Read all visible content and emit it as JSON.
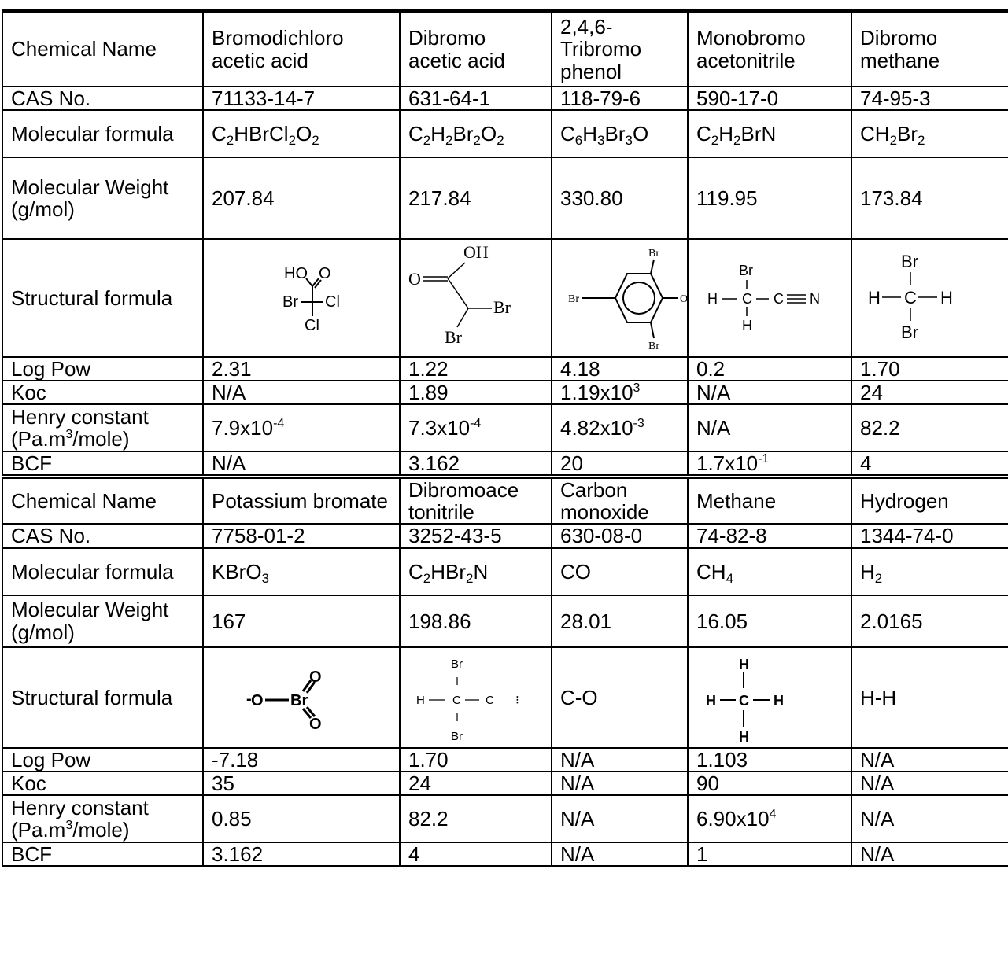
{
  "labels": {
    "chemical_name": "Chemical Name",
    "cas_no": "CAS No.",
    "molecular_formula": "Molecular formula",
    "molecular_weight": "Molecular Weight (g/mol)",
    "structural_formula": "Structural formula",
    "log_pow": "Log Pow",
    "koc": "Koc",
    "henry_a": "Henry constant",
    "henry_b": "(Pa.m",
    "henry_sup": "3",
    "henry_c": "/mole)",
    "bcf": "BCF"
  },
  "table_a": {
    "names": [
      "Bromodichloro acetic acid",
      "Dibromo acetic acid",
      "2,4,6- Tribromo phenol",
      "Monobromo acetonitrile",
      "Dibromo methane"
    ],
    "cas": [
      "71133-14-7",
      "631-64-1",
      "118-79-6",
      "590-17-0",
      "74-95-3"
    ],
    "formulas": [
      [
        {
          "t": "C"
        },
        {
          "s": "2"
        },
        {
          "t": "HBrCl"
        },
        {
          "s": "2"
        },
        {
          "t": "O"
        },
        {
          "s": "2"
        }
      ],
      [
        {
          "t": "C"
        },
        {
          "s": "2"
        },
        {
          "t": "H"
        },
        {
          "s": "2"
        },
        {
          "t": "Br"
        },
        {
          "s": "2"
        },
        {
          "t": "O"
        },
        {
          "s": "2"
        }
      ],
      [
        {
          "t": "C"
        },
        {
          "s": "6"
        },
        {
          "t": "H"
        },
        {
          "s": "3"
        },
        {
          "t": "Br"
        },
        {
          "s": "3"
        },
        {
          "t": "O"
        }
      ],
      [
        {
          "t": "C"
        },
        {
          "s": "2"
        },
        {
          "t": "H"
        },
        {
          "s": "2"
        },
        {
          "t": "BrN"
        }
      ],
      [
        {
          "t": "CH"
        },
        {
          "s": "2"
        },
        {
          "t": "Br"
        },
        {
          "s": "2"
        }
      ]
    ],
    "weights": [
      "207.84",
      "217.84",
      "330.80",
      "119.95",
      "173.84"
    ],
    "log_pow": [
      "2.31",
      "1.22",
      "4.18",
      "0.2",
      "1.70"
    ],
    "koc": [
      [
        {
          "t": "N/A"
        }
      ],
      [
        {
          "t": "1.89"
        }
      ],
      [
        {
          "t": "1.19x10"
        },
        {
          "p": "3"
        }
      ],
      [
        {
          "t": "N/A"
        }
      ],
      [
        {
          "t": "24"
        }
      ]
    ],
    "henry": [
      [
        {
          "t": "7.9x10"
        },
        {
          "p": "-4"
        }
      ],
      [
        {
          "t": "7.3x10"
        },
        {
          "p": "-4"
        }
      ],
      [
        {
          "t": "4.82x10"
        },
        {
          "p": "-3"
        }
      ],
      [
        {
          "t": "N/A"
        }
      ],
      [
        {
          "t": "82.2"
        }
      ]
    ],
    "bcf": [
      [
        {
          "t": "N/A"
        }
      ],
      [
        {
          "t": "3.162"
        }
      ],
      [
        {
          "t": "20"
        }
      ],
      [
        {
          "t": "1.7x10"
        },
        {
          "p": "-1"
        }
      ],
      [
        {
          "t": "4"
        }
      ]
    ],
    "structures": {
      "bromodichloroacetic": {
        "ho": "HO",
        "o": "O",
        "br": "Br",
        "cl1": "Cl",
        "cl2": "Cl"
      },
      "dibromoacetic": {
        "oh": "OH",
        "o": "O",
        "br1": "Br",
        "br2": "Br"
      },
      "tribromophenol": {
        "br_top": "Br",
        "br_left": "Br",
        "br_bottom": "Br",
        "o": "O"
      },
      "monobromoacetonitrile": {
        "br": "Br",
        "h_left": "H",
        "c1": "C",
        "c2": "C",
        "n": "N",
        "h_bottom": "H"
      },
      "dibromomethane": {
        "br_top": "Br",
        "h_left": "H",
        "c": "C",
        "h_right": "H",
        "br_bottom": "Br"
      }
    }
  },
  "table_b": {
    "names": [
      "Potassium bromate",
      "Dibromoace tonitrile",
      "Carbon monoxide",
      "Methane",
      "Hydrogen"
    ],
    "cas": [
      "7758-01-2",
      "3252-43-5",
      "630-08-0",
      "74-82-8",
      "1344-74-0"
    ],
    "formulas": [
      [
        {
          "t": "KBrO"
        },
        {
          "s": "3"
        }
      ],
      [
        {
          "t": "C"
        },
        {
          "s": "2"
        },
        {
          "t": "HBr"
        },
        {
          "s": "2"
        },
        {
          "t": "N"
        }
      ],
      [
        {
          "t": "CO"
        }
      ],
      [
        {
          "t": "CH"
        },
        {
          "s": "4"
        }
      ],
      [
        {
          "t": "H"
        },
        {
          "s": "2"
        }
      ]
    ],
    "weights": [
      "167",
      "198.86",
      "28.01",
      "16.05",
      "2.0165"
    ],
    "log_pow": [
      "-7.18",
      "1.70",
      "N/A",
      "1.103",
      "N/A"
    ],
    "koc": [
      "35",
      "24",
      "N/A",
      "90",
      "N/A"
    ],
    "henry": [
      [
        {
          "t": "0.85"
        }
      ],
      [
        {
          "t": "82.2"
        }
      ],
      [
        {
          "t": "N/A"
        }
      ],
      [
        {
          "t": "6.90x10"
        },
        {
          "p": "4"
        }
      ],
      [
        {
          "t": "N/A"
        }
      ]
    ],
    "bcf": [
      "3.162",
      "4",
      "N/A",
      "1",
      "N/A"
    ],
    "structures": {
      "potassium_bromate": {
        "minus": "-",
        "o_left": "O",
        "br": "Br",
        "o_top": "O",
        "o_bottom": "O"
      },
      "dibromoacetonitrile": {
        "br_top": "Br",
        "h": "H",
        "c1": "C",
        "c2": "C",
        "tail": "⁝",
        "br_bottom": "Br"
      },
      "carbon_monoxide": "C-O",
      "methane": {
        "h_top": "H",
        "h_left": "H",
        "c": "C",
        "h_right": "H",
        "h_bottom": "H"
      },
      "hydrogen": "H-H"
    }
  }
}
